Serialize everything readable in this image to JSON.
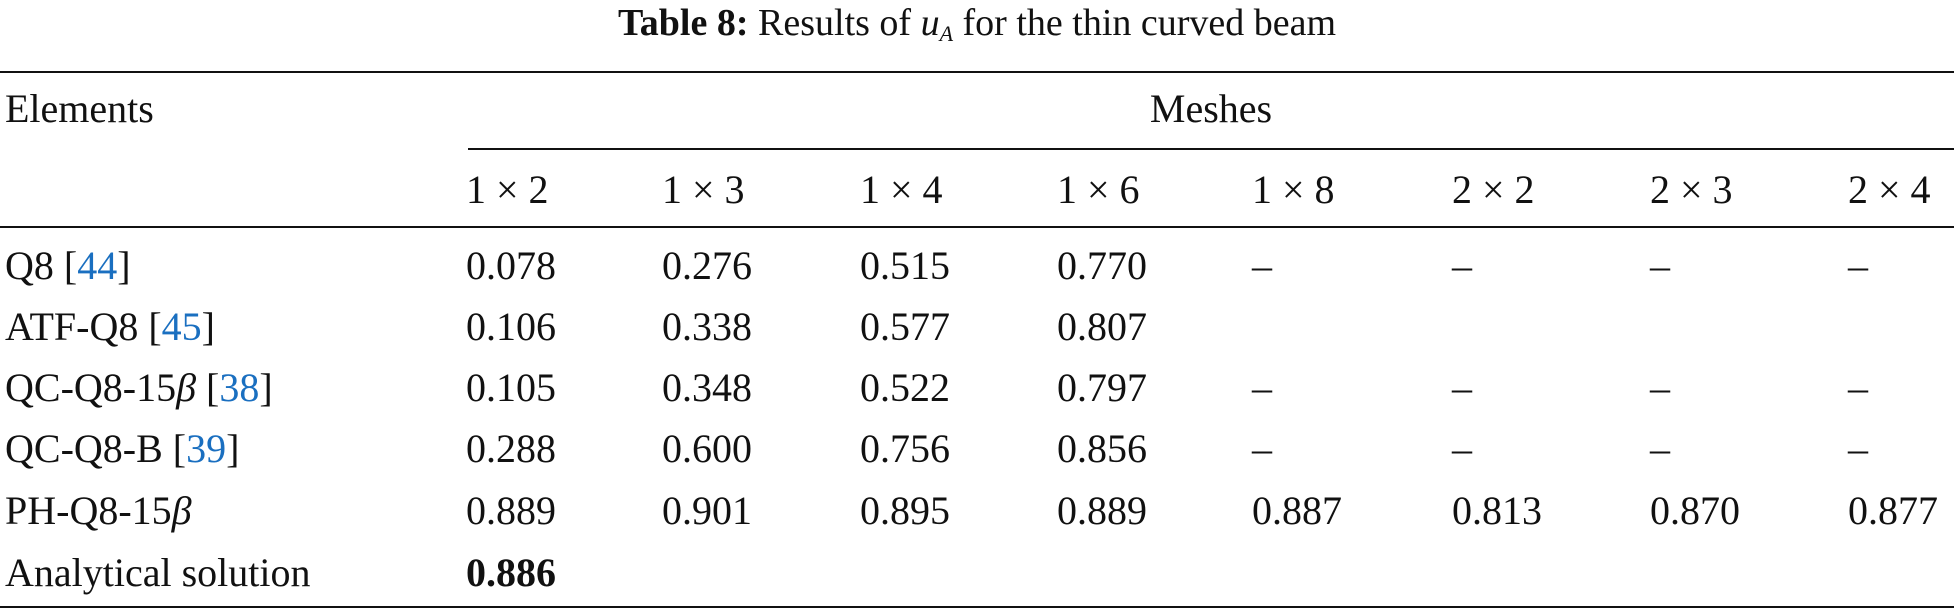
{
  "caption": {
    "label": "Table 8:",
    "text_before": "Results of ",
    "var": "u",
    "var_sub": "A",
    "text_after": " for the thin curved beam"
  },
  "header": {
    "elements": "Elements",
    "meshes": "Meshes",
    "columns": [
      "1 × 2",
      "1 × 3",
      "1 × 4",
      "1 × 6",
      "1 × 8",
      "2 × 2",
      "2 × 3",
      "2 × 4"
    ]
  },
  "rows": [
    {
      "name": "Q8",
      "ref": "44",
      "beta": "",
      "values": [
        "0.078",
        "0.276",
        "0.515",
        "0.770",
        "–",
        "–",
        "–",
        "–"
      ]
    },
    {
      "name": "ATF-Q8",
      "ref": "45",
      "beta": "",
      "values": [
        "0.106",
        "0.338",
        "0.577",
        "0.807",
        "",
        "",
        "",
        ""
      ]
    },
    {
      "name": "QC-Q8-15",
      "ref": "38",
      "beta": "β",
      "values": [
        "0.105",
        "0.348",
        "0.522",
        "0.797",
        "–",
        "–",
        "–",
        "–"
      ]
    },
    {
      "name": "QC-Q8-B",
      "ref": "39",
      "beta": "",
      "values": [
        "0.288",
        "0.600",
        "0.756",
        "0.856",
        "–",
        "–",
        "–",
        "–"
      ]
    },
    {
      "name": "PH-Q8-15",
      "ref": "",
      "beta": "β",
      "values": [
        "0.889",
        "0.901",
        "0.895",
        "0.889",
        "0.887",
        "0.813",
        "0.870",
        "0.877"
      ]
    },
    {
      "name": "Analytical solution",
      "ref": "",
      "beta": "",
      "values": [
        "0.886",
        "",
        "",
        "",
        "",
        "",
        "",
        ""
      ]
    }
  ]
}
